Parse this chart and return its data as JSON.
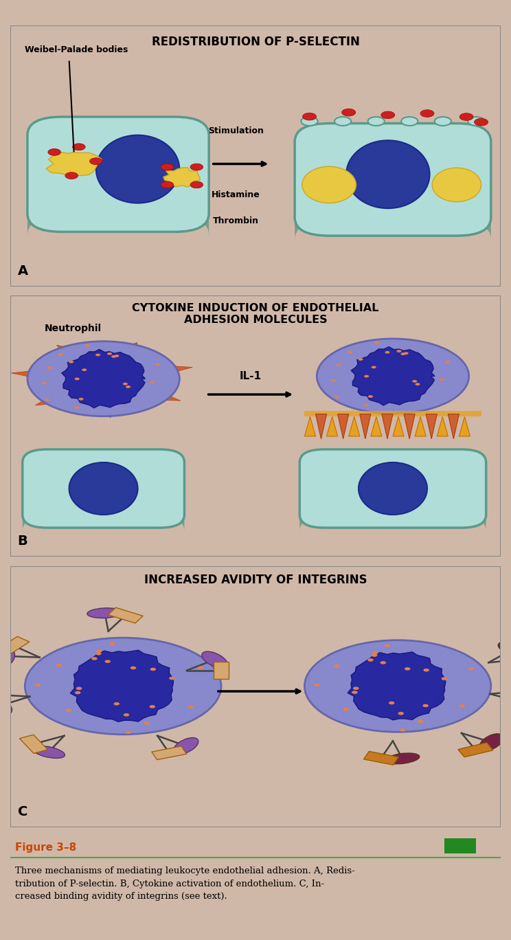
{
  "panel_A_title": "REDISTRIBUTION OF P-SELECTIN",
  "panel_B_title": "CYTOKINE INDUCTION OF ENDOTHELIAL\nADHESION MOLECULES",
  "panel_C_title": "INCREASED AVIDITY OF INTEGRINS",
  "figure_label": "Figure 3–8",
  "bg_color": "#f0c8b8",
  "cell_color": "#b0ddd8",
  "cell_border": "#5a9a8a",
  "cell_shadow": "#3a8a7a",
  "nucleus_color": "#2a3a9a",
  "nucleus_border": "#1a2a8a",
  "weibel_color": "#e8c840",
  "weibel_border": "#c8a820",
  "red_dot": "#cc2020",
  "neutrophil_outer": "#8888cc",
  "neutrophil_outer_border": "#6666aa",
  "neutrophil_inner": "#2828a0",
  "neutrophil_inner_border": "#181880",
  "spike_color": "#d06030",
  "spike_border": "#b04010",
  "orange_dot": "#e08050",
  "adhesion_up": "#e8a020",
  "adhesion_up_border": "#c07000",
  "adhesion_down": "#d06030",
  "adhesion_down_border": "#a04010",
  "integrin_purple": "#8855aa",
  "integrin_purple_border": "#553366",
  "integrin_tan": "#d4a870",
  "integrin_tan_border": "#a06010",
  "integrin_purple_active": "#772244",
  "integrin_purple_active_border": "#553322",
  "integrin_tan_active": "#c87820",
  "integrin_tan_active_border": "#906000",
  "fig_label_color": "#cc4400",
  "green_square": "#228822",
  "caption_line_color": "#44aa44"
}
